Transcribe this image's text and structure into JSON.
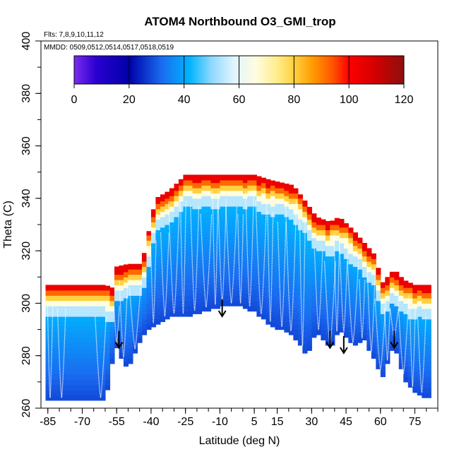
{
  "chart_data": {
    "type": "heatmap",
    "title": "ATOM4 Northbound O3_GMI_trop",
    "subtitle_flights": "Flts: 7,8,9,10,11,12",
    "subtitle_dates": "MMDD: 0509,0512,0514,0517,0518,0519",
    "xlabel": "Latitude (deg N)",
    "ylabel": "Theta (C)",
    "xlim": [
      -88,
      85
    ],
    "ylim": [
      260,
      400
    ],
    "xticks": [
      -85,
      -70,
      -55,
      -40,
      -25,
      -10,
      5,
      15,
      30,
      45,
      60,
      75
    ],
    "xtick_labels": [
      "-85",
      "-70",
      "-55",
      "-40",
      "-25",
      "-10",
      "5",
      "15",
      "30",
      "45",
      "60",
      "75"
    ],
    "yticks": [
      260,
      280,
      300,
      320,
      340,
      360,
      380,
      400
    ],
    "ytick_labels": [
      "260",
      "280",
      "300",
      "320",
      "340",
      "360",
      "380",
      "400"
    ],
    "colorbar": {
      "min": 0,
      "max": 120,
      "ticks": [
        0,
        20,
        40,
        60,
        80,
        100,
        120
      ],
      "tick_labels": [
        "0",
        "20",
        "40",
        "60",
        "80",
        "100",
        "120"
      ],
      "stops": [
        {
          "v": 0,
          "color": "#7b2cf0"
        },
        {
          "v": 8,
          "color": "#2a00d0"
        },
        {
          "v": 20,
          "color": "#0000a8"
        },
        {
          "v": 32,
          "color": "#1a6cf0"
        },
        {
          "v": 42,
          "color": "#00b4ff"
        },
        {
          "v": 50,
          "color": "#8fd8ff"
        },
        {
          "v": 58,
          "color": "#dff4ff"
        },
        {
          "v": 66,
          "color": "#fffde0"
        },
        {
          "v": 74,
          "color": "#ffec8a"
        },
        {
          "v": 80,
          "color": "#ffd040"
        },
        {
          "v": 87,
          "color": "#ff9a00"
        },
        {
          "v": 94,
          "color": "#ff5500"
        },
        {
          "v": 100,
          "color": "#ff0000"
        },
        {
          "v": 110,
          "color": "#d00000"
        },
        {
          "v": 120,
          "color": "#8c1010"
        }
      ]
    },
    "profiles": [
      {
        "lat": -85,
        "bottom": 263,
        "top": 307
      },
      {
        "lat": -70,
        "bottom": 263,
        "top": 307
      },
      {
        "lat": -60,
        "bottom": 263,
        "top": 307
      },
      {
        "lat": -57,
        "bottom": 277,
        "top": 306
      },
      {
        "lat": -55,
        "bottom": 283,
        "top": 314
      },
      {
        "lat": -50,
        "bottom": 275,
        "top": 315
      },
      {
        "lat": -44,
        "bottom": 288,
        "top": 315
      },
      {
        "lat": -38,
        "bottom": 292,
        "top": 340
      },
      {
        "lat": -32,
        "bottom": 295,
        "top": 343
      },
      {
        "lat": -25,
        "bottom": 295,
        "top": 349
      },
      {
        "lat": -18,
        "bottom": 297,
        "top": 349
      },
      {
        "lat": -10,
        "bottom": 299,
        "top": 349
      },
      {
        "lat": 0,
        "bottom": 299,
        "top": 349
      },
      {
        "lat": 5,
        "bottom": 297,
        "top": 349
      },
      {
        "lat": 12,
        "bottom": 292,
        "top": 347
      },
      {
        "lat": 22,
        "bottom": 288,
        "top": 345
      },
      {
        "lat": 28,
        "bottom": 280,
        "top": 338
      },
      {
        "lat": 32,
        "bottom": 290,
        "top": 333
      },
      {
        "lat": 38,
        "bottom": 283,
        "top": 331
      },
      {
        "lat": 42,
        "bottom": 290,
        "top": 333
      },
      {
        "lat": 48,
        "bottom": 284,
        "top": 328
      },
      {
        "lat": 53,
        "bottom": 286,
        "top": 323
      },
      {
        "lat": 57,
        "bottom": 279,
        "top": 319
      },
      {
        "lat": 61,
        "bottom": 272,
        "top": 308
      },
      {
        "lat": 66,
        "bottom": 285,
        "top": 313
      },
      {
        "lat": 70,
        "bottom": 272,
        "top": 309
      },
      {
        "lat": 75,
        "bottom": 266,
        "top": 307
      },
      {
        "lat": 80,
        "bottom": 264,
        "top": 307
      }
    ],
    "arrows_lat": [
      -54,
      -9,
      38,
      44,
      66
    ],
    "arrow_theta": [
      287,
      299,
      287,
      285,
      287
    ]
  }
}
